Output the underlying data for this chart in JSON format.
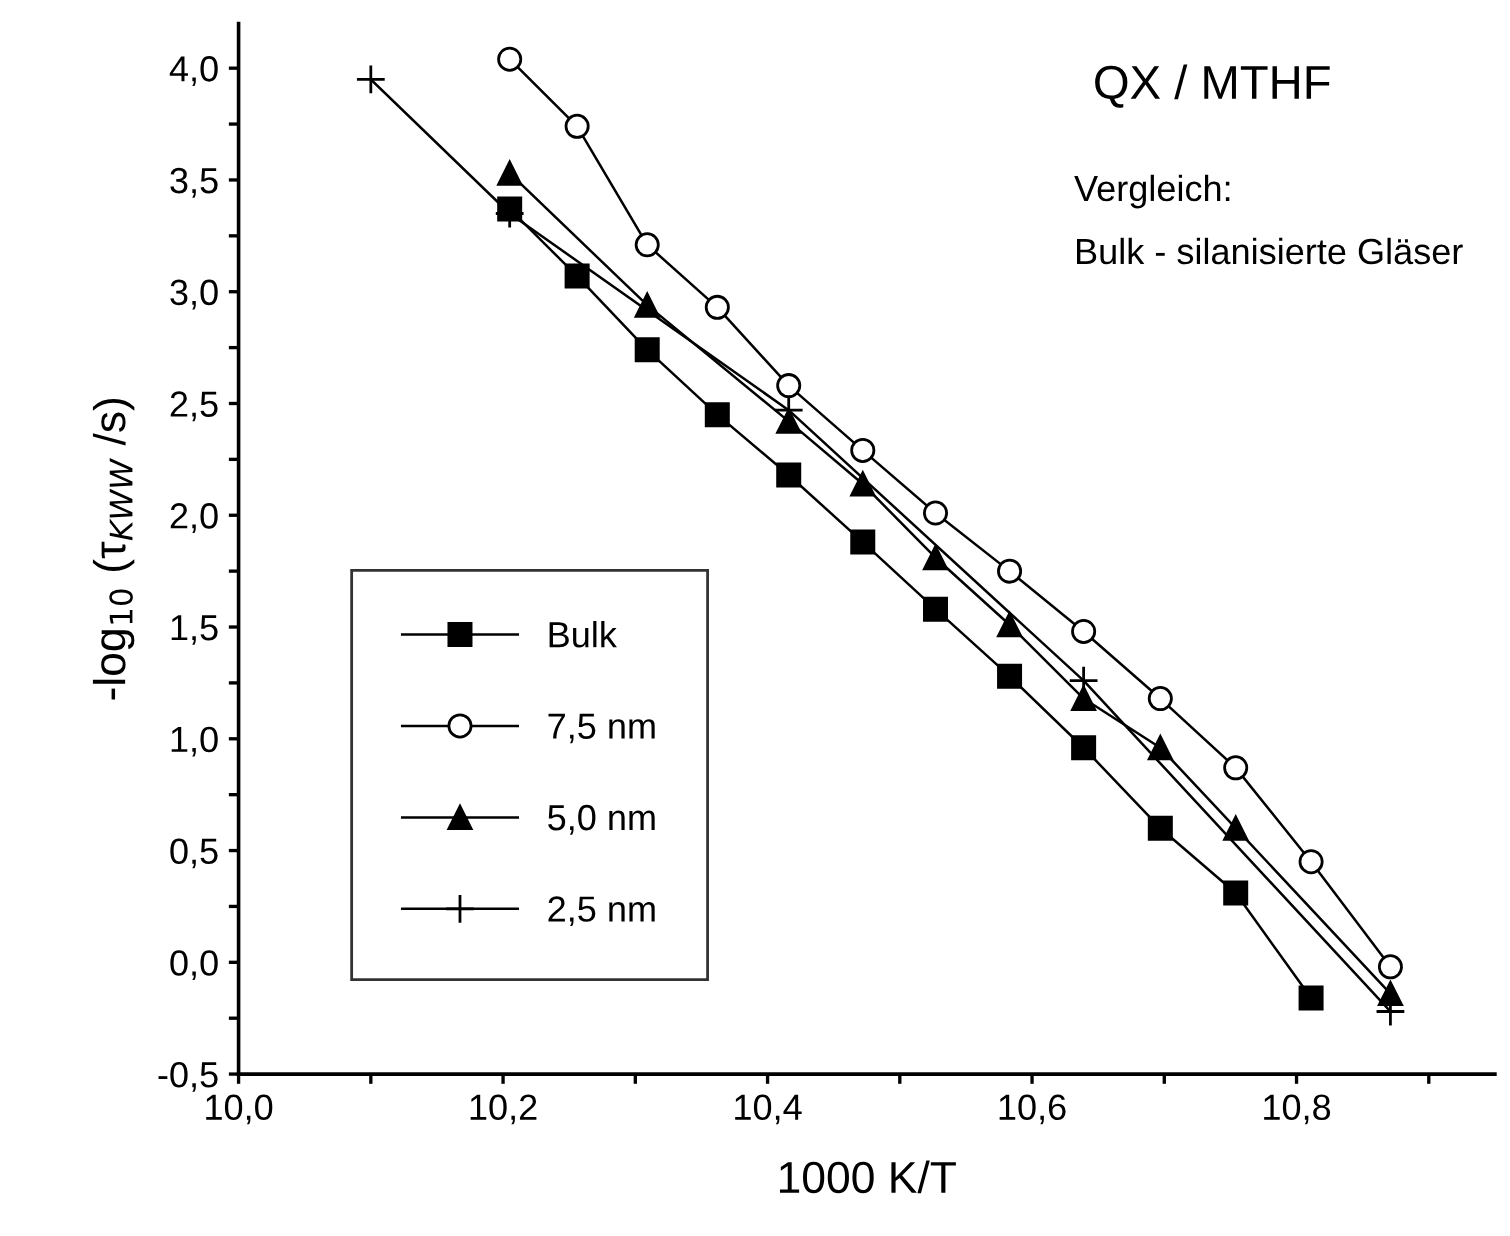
{
  "chart_data": {
    "type": "line",
    "annotations": [
      "QX / MTHF",
      "Vergleich:",
      "Bulk - silanisierte Gläser"
    ],
    "xlabel": "1000 K/T",
    "ylabel": "-log$_{10}$ (τ$_{KWW}$ /s)",
    "series": [
      {
        "name": "Bulk",
        "color": "#000000",
        "marker": "square",
        "x": [
          10.205,
          10.256,
          10.309,
          10.362,
          10.416,
          10.472,
          10.527,
          10.583,
          10.639,
          10.697,
          10.754,
          10.811
        ],
        "values": [
          3.37,
          3.07,
          2.74,
          2.45,
          2.18,
          1.88,
          1.58,
          1.28,
          0.96,
          0.6,
          0.31,
          -0.16
        ]
      },
      {
        "name": "7,5 nm",
        "color": "#000000",
        "marker": "circle",
        "x": [
          10.205,
          10.256,
          10.309,
          10.362,
          10.416,
          10.472,
          10.527,
          10.583,
          10.639,
          10.697,
          10.754,
          10.811,
          10.871
        ],
        "values": [
          4.04,
          3.74,
          3.21,
          2.93,
          2.58,
          2.29,
          2.01,
          1.75,
          1.48,
          1.18,
          0.87,
          0.45,
          -0.02
        ]
      },
      {
        "name": "5,0 nm",
        "color": "#000000",
        "marker": "triangle",
        "x": [
          10.205,
          10.309,
          10.416,
          10.472,
          10.527,
          10.583,
          10.639,
          10.697,
          10.754,
          10.871
        ],
        "values": [
          3.53,
          2.94,
          2.42,
          2.14,
          1.81,
          1.51,
          1.18,
          0.96,
          0.6,
          -0.14
        ]
      },
      {
        "name": "2,5 nm",
        "color": "#000000",
        "marker": "cross",
        "x": [
          10.1,
          10.205,
          10.416,
          10.639,
          10.871
        ],
        "values": [
          3.95,
          3.35,
          2.47,
          1.26,
          -0.22
        ]
      }
    ],
    "xlim": [
      10.0,
      10.95
    ],
    "ylim": [
      -0.5,
      4.2
    ],
    "xticks": [
      {
        "value": 10.0,
        "label": "10,0"
      },
      {
        "value": 10.1,
        "label": null
      },
      {
        "value": 10.2,
        "label": "10,2"
      },
      {
        "value": 10.3,
        "label": null
      },
      {
        "value": 10.4,
        "label": "10,4"
      },
      {
        "value": 10.5,
        "label": null
      },
      {
        "value": 10.6,
        "label": "10,6"
      },
      {
        "value": 10.7,
        "label": null
      },
      {
        "value": 10.8,
        "label": "10,8"
      },
      {
        "value": 10.9,
        "label": null
      }
    ],
    "yticks": [
      {
        "value": -0.5,
        "label": "-0,5"
      },
      {
        "value": -0.25,
        "label": null
      },
      {
        "value": 0.0,
        "label": "0,0"
      },
      {
        "value": 0.25,
        "label": null
      },
      {
        "value": 0.5,
        "label": "0,5"
      },
      {
        "value": 0.75,
        "label": null
      },
      {
        "value": 1.0,
        "label": "1,0"
      },
      {
        "value": 1.25,
        "label": null
      },
      {
        "value": 1.5,
        "label": "1,5"
      },
      {
        "value": 1.75,
        "label": null
      },
      {
        "value": 2.0,
        "label": "2,0"
      },
      {
        "value": 2.25,
        "label": null
      },
      {
        "value": 2.5,
        "label": "2,5"
      },
      {
        "value": 2.75,
        "label": null
      },
      {
        "value": 3.0,
        "label": "3,0"
      },
      {
        "value": 3.25,
        "label": null
      },
      {
        "value": 3.5,
        "label": "3,5"
      },
      {
        "value": 3.75,
        "label": null
      },
      {
        "value": 4.0,
        "label": "4,0"
      }
    ],
    "grid": false,
    "legend": "bottom left",
    "line_style": "solid"
  }
}
